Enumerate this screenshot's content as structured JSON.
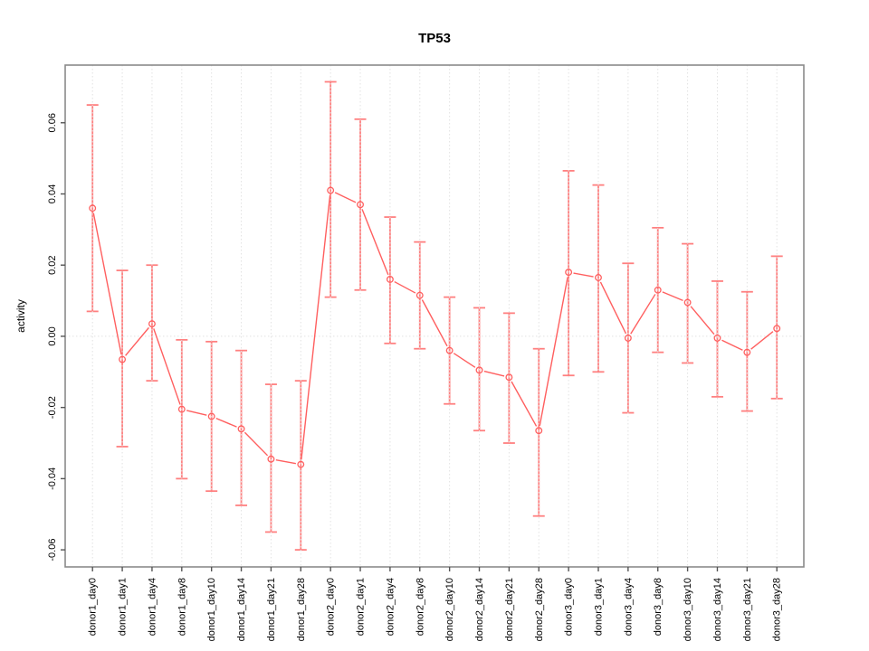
{
  "chart_data": {
    "type": "line",
    "title": "TP53",
    "xlabel": "",
    "ylabel": "activity",
    "legend_position": "none",
    "grid": {
      "vertical_dotted_per_category": true,
      "horizontal_zero_line_dotted": true
    },
    "axis": {
      "ylim": [
        -0.0648,
        0.0762
      ],
      "ytick_values": [
        0.06,
        0.04,
        0.02,
        0.0,
        -0.02,
        -0.04,
        -0.06
      ],
      "ytick_labels": [
        "0.06",
        "0.04",
        "0.02",
        "0.00",
        "-0.02",
        "-0.04",
        "-0.06"
      ]
    },
    "categories": [
      "donor1_day0",
      "donor1_day1",
      "donor1_day4",
      "donor1_day8",
      "donor1_day10",
      "donor1_day14",
      "donor1_day21",
      "donor1_day28",
      "donor2_day0",
      "donor2_day1",
      "donor2_day4",
      "donor2_day8",
      "donor2_day10",
      "donor2_day14",
      "donor2_day21",
      "donor2_day28",
      "donor3_day0",
      "donor3_day1",
      "donor3_day4",
      "donor3_day8",
      "donor3_day10",
      "donor3_day14",
      "donor3_day21",
      "donor3_day28"
    ],
    "series": [
      {
        "name": "activity",
        "marker": "open-circle",
        "values": [
          0.036,
          -0.0065,
          0.0035,
          -0.0205,
          -0.0225,
          -0.026,
          -0.0345,
          -0.036,
          0.041,
          0.037,
          0.016,
          0.0115,
          -0.004,
          -0.0095,
          -0.0115,
          -0.0265,
          0.018,
          0.0165,
          -0.0005,
          0.013,
          0.0095,
          -0.0005,
          -0.0045,
          0.0022
        ],
        "lower": [
          0.007,
          -0.031,
          -0.0125,
          -0.04,
          -0.0435,
          -0.0475,
          -0.055,
          -0.06,
          0.011,
          0.013,
          -0.002,
          -0.0035,
          -0.019,
          -0.0265,
          -0.03,
          -0.0505,
          -0.011,
          -0.01,
          -0.0215,
          -0.0045,
          -0.0075,
          -0.017,
          -0.021,
          -0.0175
        ],
        "upper": [
          0.065,
          0.0185,
          0.02,
          -0.001,
          -0.0015,
          -0.004,
          -0.0135,
          -0.0125,
          0.0715,
          0.061,
          0.0335,
          0.0265,
          0.011,
          0.008,
          0.0065,
          -0.0035,
          0.0465,
          0.0425,
          0.0205,
          0.0305,
          0.026,
          0.0155,
          0.0125,
          0.0225
        ]
      }
    ],
    "colors": {
      "series": "#ff5f5f",
      "error_bar": "#ff8080",
      "grid": "#e2e2e2",
      "box": "#8a8a8a",
      "tick": "#555555",
      "text": "#000000",
      "background": "#ffffff"
    }
  }
}
